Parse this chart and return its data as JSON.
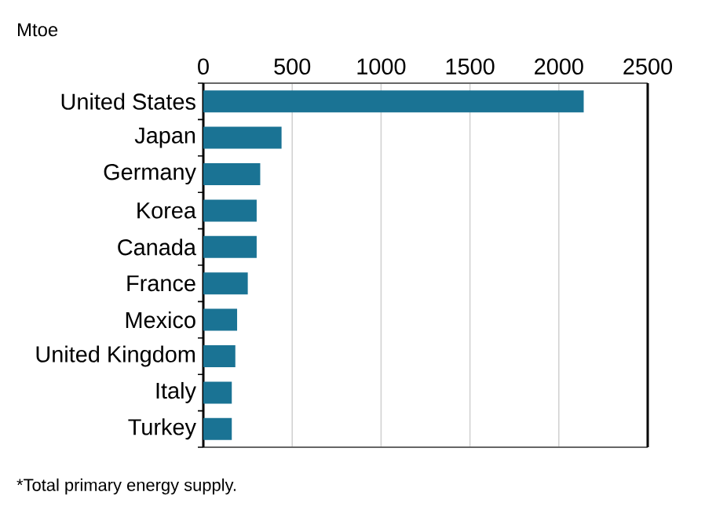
{
  "chart_data": {
    "type": "bar",
    "orientation": "horizontal",
    "xlabel": "Mtoe",
    "categories": [
      "United States",
      "Japan",
      "Germany",
      "Korea",
      "Canada",
      "France",
      "Mexico",
      "United Kingdom",
      "Italy",
      "Turkey"
    ],
    "values": [
      2140,
      440,
      320,
      300,
      300,
      250,
      190,
      180,
      160,
      160
    ],
    "color": "#1a7394",
    "xlim": [
      0,
      2500
    ],
    "xticks": [
      0,
      500,
      1000,
      1500,
      2000,
      2500
    ],
    "grid": "x",
    "annotations": [
      "*Total primary energy supply."
    ]
  }
}
